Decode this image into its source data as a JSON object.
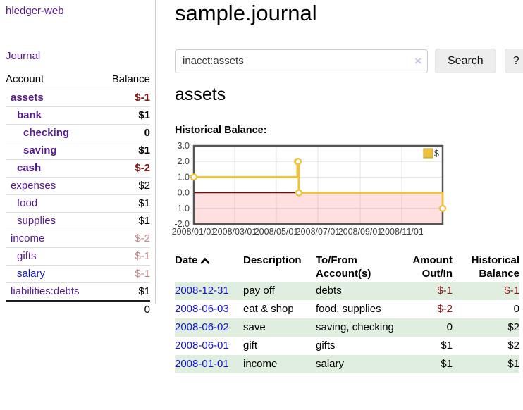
{
  "colors": {
    "purple_link": "#551a8b",
    "blue_link": "#1414cc",
    "negative": "#861919",
    "muted_negative": "#bd8585",
    "row_green": "#dfeede",
    "chart_line": "#edc240",
    "chart_negative_fill": "rgba(255,0,0,0.12)",
    "zero_line": "#8b0000",
    "plot_border": "#555555",
    "gridline": "#e4e4e4"
  },
  "sidebar": {
    "brand": "hledger-web",
    "journal_link": "Journal",
    "accounts": {
      "headers": [
        "Account",
        "Balance"
      ],
      "rows": [
        {
          "account": "assets",
          "balance": "$-1",
          "indent": 1,
          "bold": true,
          "balance_style": "negative",
          "link_style": "purple"
        },
        {
          "account": "bank",
          "balance": "$1",
          "indent": 2,
          "bold": true,
          "balance_style": "normal",
          "link_style": "purple"
        },
        {
          "account": "checking",
          "balance": "0",
          "indent": 3,
          "bold": true,
          "balance_style": "normal",
          "link_style": "purple"
        },
        {
          "account": "saving",
          "balance": "$1",
          "indent": 3,
          "bold": true,
          "balance_style": "normal",
          "link_style": "purple"
        },
        {
          "account": "cash",
          "balance": "$-2",
          "indent": 2,
          "bold": true,
          "balance_style": "negative",
          "link_style": "purple"
        },
        {
          "account": "expenses",
          "balance": "$2",
          "indent": 1,
          "bold": false,
          "balance_style": "normal",
          "link_style": "purple"
        },
        {
          "account": "food",
          "balance": "$1",
          "indent": 2,
          "bold": false,
          "balance_style": "normal",
          "link_style": "purple"
        },
        {
          "account": "supplies",
          "balance": "$1",
          "indent": 2,
          "bold": false,
          "balance_style": "normal",
          "link_style": "purple"
        },
        {
          "account": "income",
          "balance": "$-2",
          "indent": 1,
          "bold": false,
          "balance_style": "muted",
          "link_style": "purple"
        },
        {
          "account": "gifts",
          "balance": "$-1",
          "indent": 2,
          "bold": false,
          "balance_style": "muted",
          "link_style": "purple"
        },
        {
          "account": "salary",
          "balance": "$-1",
          "indent": 2,
          "bold": false,
          "balance_style": "muted",
          "link_style": "blue"
        },
        {
          "account": "liabilities:debts",
          "balance": "$1",
          "indent": 1,
          "bold": false,
          "balance_style": "normal",
          "link_style": "purple"
        }
      ],
      "total": "0"
    }
  },
  "main": {
    "title": "sample.journal",
    "search": {
      "value": "inacct:assets",
      "clear_icon": "×",
      "search_button": "Search",
      "help_button": "?"
    },
    "account_heading": "assets",
    "chart_heading": "Historical Balance:",
    "register": {
      "headers": {
        "date": "Date",
        "description": "Description",
        "accounts": "To/From Account(s)",
        "amount": "Amount Out/In",
        "balance": "Historical Balance"
      },
      "rows": [
        {
          "date": "2008-12-31",
          "description": "pay off",
          "accounts": "debts",
          "amount": "$-1",
          "amount_style": "negative",
          "balance": "$-1",
          "balance_style": "negative"
        },
        {
          "date": "2008-06-03",
          "description": "eat & shop",
          "accounts": "food, supplies",
          "amount": "$-2",
          "amount_style": "negative",
          "balance": "0",
          "balance_style": "normal"
        },
        {
          "date": "2008-06-02",
          "description": "save",
          "accounts": "saving, checking",
          "amount": "0",
          "amount_style": "normal",
          "balance": "$2",
          "balance_style": "normal"
        },
        {
          "date": "2008-06-01",
          "description": "gift",
          "accounts": "gifts",
          "amount": "$1",
          "amount_style": "normal",
          "balance": "$2",
          "balance_style": "normal"
        },
        {
          "date": "2008-01-01",
          "description": "income",
          "accounts": "salary",
          "amount": "$1",
          "amount_style": "normal",
          "balance": "$1",
          "balance_style": "normal"
        }
      ]
    }
  },
  "chart_data": {
    "type": "line",
    "step": true,
    "title": "Historical Balance",
    "xlabel": "",
    "ylabel": "",
    "xlim": [
      "2008-01-01",
      "2008-12-31"
    ],
    "ylim": [
      -2,
      3
    ],
    "grid": true,
    "x_ticks": [
      "2008/01/01",
      "2008/03/01",
      "2008/05/01",
      "2008/07/01",
      "2008/09/01",
      "2008/11/01"
    ],
    "y_ticks": [
      3.0,
      2.0,
      1.0,
      0.0,
      -1.0,
      -2.0
    ],
    "legend": {
      "position": "top-right",
      "entries": [
        {
          "label": "$",
          "color": "#edc240"
        }
      ]
    },
    "series": [
      {
        "name": "$",
        "color": "#edc240",
        "points": [
          {
            "x": "2008-01-01",
            "y": 1
          },
          {
            "x": "2008-06-01",
            "y": 2
          },
          {
            "x": "2008-06-02",
            "y": 2
          },
          {
            "x": "2008-06-03",
            "y": 0
          },
          {
            "x": "2008-12-31",
            "y": -1
          }
        ]
      }
    ],
    "negative_region_fill": "rgba(255,0,0,0.12)",
    "zero_line_color": "#8b0000"
  }
}
